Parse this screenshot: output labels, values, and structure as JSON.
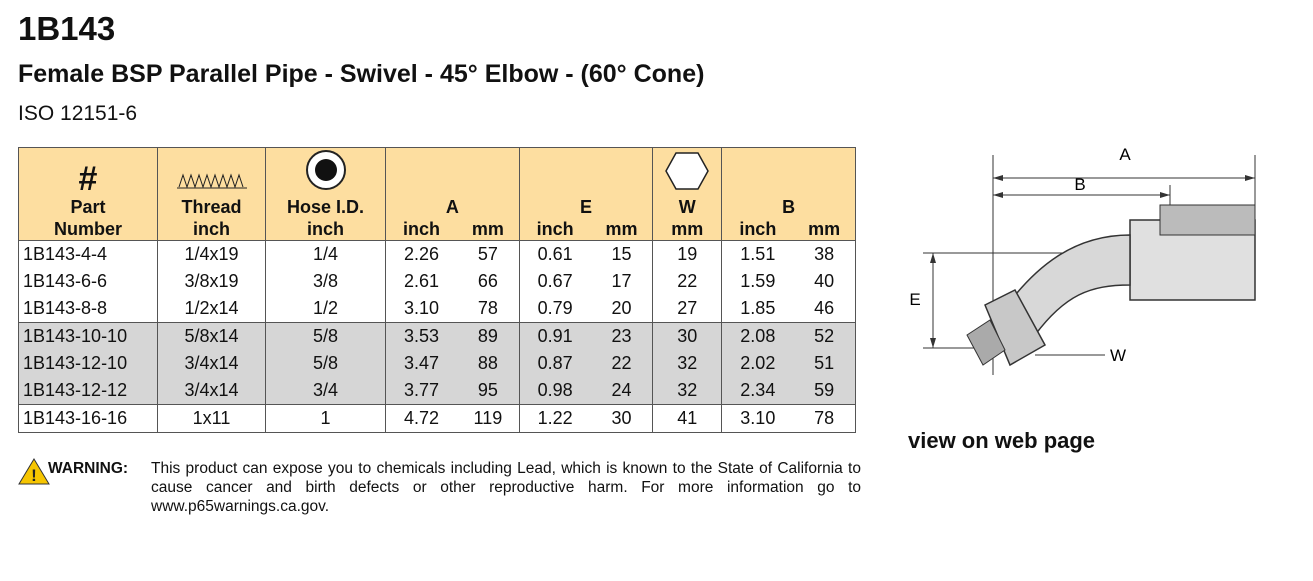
{
  "header": {
    "title": "1B143",
    "subtitle": "Female BSP Parallel Pipe - Swivel - 45° Elbow - (60° Cone)",
    "standard": "ISO 12151-6"
  },
  "table": {
    "symbol": "#",
    "head_top": [
      "Part",
      "Thread",
      "Hose I.D.",
      "A",
      "E",
      "W",
      "B"
    ],
    "head_bottom": [
      "Number",
      "inch",
      "inch",
      "inch",
      "mm",
      "inch",
      "mm",
      "mm",
      "inch",
      "mm"
    ],
    "rows": [
      [
        "1B143-4-4",
        "1/4x19",
        "1/4",
        "2.26",
        "57",
        "0.61",
        "15",
        "19",
        "1.51",
        "38"
      ],
      [
        "1B143-6-6",
        "3/8x19",
        "3/8",
        "2.61",
        "66",
        "0.67",
        "17",
        "22",
        "1.59",
        "40"
      ],
      [
        "1B143-8-8",
        "1/2x14",
        "1/2",
        "3.10",
        "78",
        "0.79",
        "20",
        "27",
        "1.85",
        "46"
      ],
      [
        "1B143-10-10",
        "5/8x14",
        "5/8",
        "3.53",
        "89",
        "0.91",
        "23",
        "30",
        "2.08",
        "52"
      ],
      [
        "1B143-12-10",
        "3/4x14",
        "5/8",
        "3.47",
        "88",
        "0.87",
        "22",
        "32",
        "2.02",
        "51"
      ],
      [
        "1B143-12-12",
        "3/4x14",
        "3/4",
        "3.77",
        "95",
        "0.98",
        "24",
        "32",
        "2.34",
        "59"
      ],
      [
        "1B143-16-16",
        "1x11",
        "1",
        "4.72",
        "119",
        "1.22",
        "30",
        "41",
        "3.10",
        "78"
      ]
    ]
  },
  "diagram": {
    "labels": [
      "A",
      "B",
      "E",
      "W"
    ]
  },
  "link": "view on web page",
  "warning": {
    "label": "WARNING:",
    "text": "This product can expose you to chemicals including Lead, which is known to the State of California to cause cancer and birth defects or other reproductive harm.  For more information go to www.p65warnings.ca.gov."
  }
}
